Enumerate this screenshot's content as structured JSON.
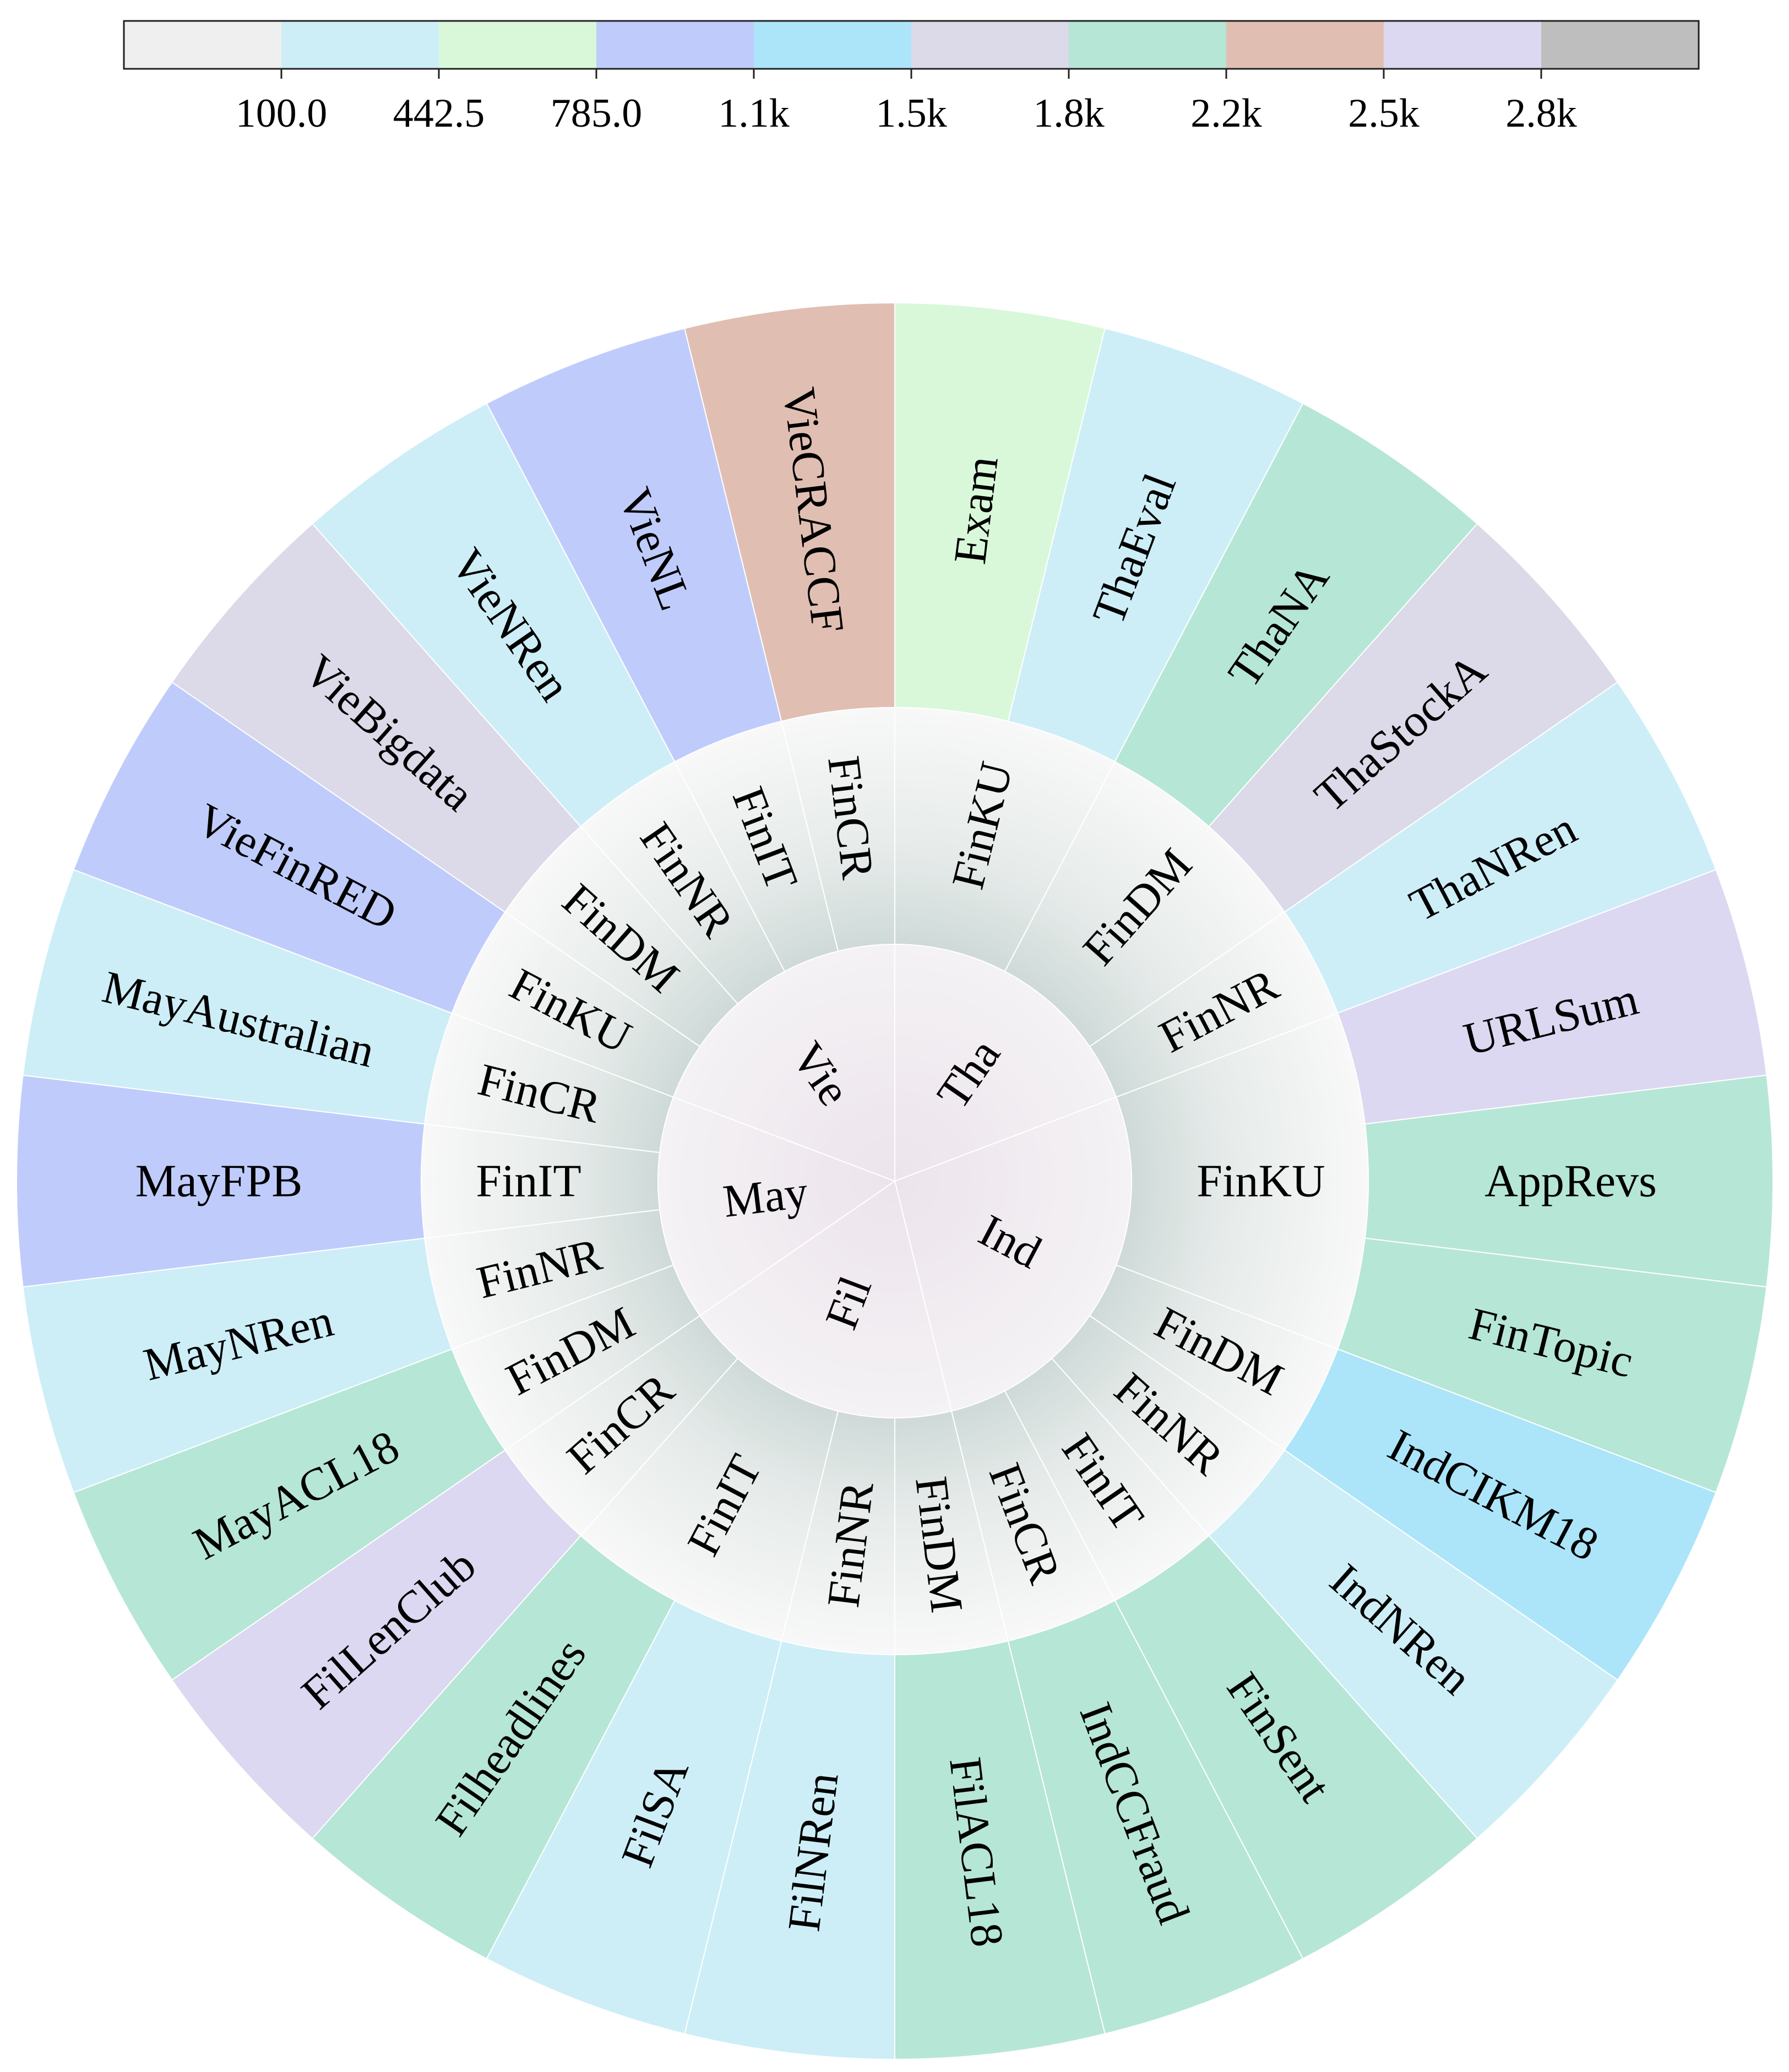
{
  "chart_data": {
    "type": "sunburst",
    "colorbar": {
      "colors": [
        "#efefef",
        "#cdeef7",
        "#d9f8da",
        "#bfccfb",
        "#ace5f9",
        "#dcd9e8",
        "#b6e6d6",
        "#e0bfb2",
        "#dcd8f1",
        "#bebebe"
      ],
      "tick_labels": [
        "100.0",
        "442.5",
        "785.0",
        "1.1k",
        "1.5k",
        "1.8k",
        "2.2k",
        "2.5k",
        "2.8k"
      ]
    },
    "languages": [
      {
        "name": "Tha",
        "tasks": [
          {
            "name": "FinKU",
            "datasets": [
              {
                "name": "Exam",
                "color": "#d9f8da"
              },
              {
                "name": "ThaEval",
                "color": "#cdeef7"
              }
            ]
          },
          {
            "name": "FinDM",
            "datasets": [
              {
                "name": "ThaNA",
                "color": "#b6e6d6"
              },
              {
                "name": "ThaStockA",
                "color": "#dcd9e8"
              }
            ]
          },
          {
            "name": "FinNR",
            "datasets": [
              {
                "name": "ThaNRen",
                "color": "#cdeef7"
              }
            ]
          }
        ]
      },
      {
        "name": "Ind",
        "tasks": [
          {
            "name": "FinKU",
            "datasets": [
              {
                "name": "URLSum",
                "color": "#dcd8f1"
              },
              {
                "name": "AppRevs",
                "color": "#b6e6d6"
              },
              {
                "name": "FinTopic",
                "color": "#b6e6d6"
              }
            ]
          },
          {
            "name": "FinDM",
            "datasets": [
              {
                "name": "IndCIKM18",
                "color": "#ace5f9"
              }
            ]
          },
          {
            "name": "FinNR",
            "datasets": [
              {
                "name": "IndNRen",
                "color": "#cdeef7"
              }
            ]
          },
          {
            "name": "FinIT",
            "datasets": [
              {
                "name": "FinSent",
                "color": "#b6e6d6"
              }
            ]
          },
          {
            "name": "FinCR",
            "datasets": [
              {
                "name": "IndCCFraud",
                "color": "#b6e6d6"
              }
            ]
          }
        ]
      },
      {
        "name": "Fil",
        "tasks": [
          {
            "name": "FinDM",
            "datasets": [
              {
                "name": "FilACL18",
                "color": "#b6e6d6"
              }
            ]
          },
          {
            "name": "FinNR",
            "datasets": [
              {
                "name": "FilNRen",
                "color": "#cdeef7"
              }
            ]
          },
          {
            "name": "FinIT",
            "datasets": [
              {
                "name": "FilSA",
                "color": "#cdeef7"
              },
              {
                "name": "Filheadlines",
                "color": "#b6e6d6"
              }
            ]
          },
          {
            "name": "FinCR",
            "datasets": [
              {
                "name": "FilLenClub",
                "color": "#dcd8f1"
              }
            ]
          }
        ]
      },
      {
        "name": "May",
        "tasks": [
          {
            "name": "FinDM",
            "datasets": [
              {
                "name": "MayACL18",
                "color": "#b6e6d6"
              }
            ]
          },
          {
            "name": "FinNR",
            "datasets": [
              {
                "name": "MayNRen",
                "color": "#cdeef7"
              }
            ]
          },
          {
            "name": "FinIT",
            "datasets": [
              {
                "name": "MayFPB",
                "color": "#bfccfb"
              }
            ]
          },
          {
            "name": "FinCR",
            "datasets": [
              {
                "name": "MayAustralian",
                "color": "#cdeef7"
              }
            ]
          }
        ]
      },
      {
        "name": "Vie",
        "tasks": [
          {
            "name": "FinKU",
            "datasets": [
              {
                "name": "VieFinRED",
                "color": "#bfccfb"
              }
            ]
          },
          {
            "name": "FinDM",
            "datasets": [
              {
                "name": "VieBigdata",
                "color": "#dcd9e8"
              }
            ]
          },
          {
            "name": "FinNR",
            "datasets": [
              {
                "name": "VieNRen",
                "color": "#cdeef7"
              }
            ]
          },
          {
            "name": "FinIT",
            "datasets": [
              {
                "name": "VieNL",
                "color": "#bfccfb"
              }
            ]
          },
          {
            "name": "FinCR",
            "datasets": [
              {
                "name": "VieCRACCF",
                "color": "#e0bfb2"
              }
            ]
          }
        ]
      }
    ]
  }
}
